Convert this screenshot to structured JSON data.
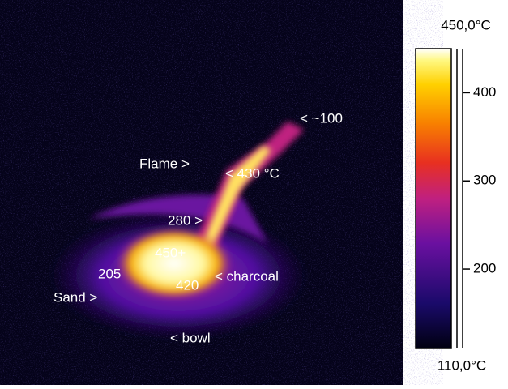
{
  "image": {
    "annotations": [
      "< ~100",
      "Flame >",
      "< 430 °C",
      "280 >",
      "450+",
      "205",
      "< charcoal",
      "420",
      "Sand >",
      "< bowl"
    ]
  },
  "colorbar": {
    "max": {
      "value": 450,
      "label": "450,0°C"
    },
    "min": {
      "value": 110,
      "label": "110,0°C"
    },
    "ticks": [
      200,
      300,
      400
    ]
  }
}
